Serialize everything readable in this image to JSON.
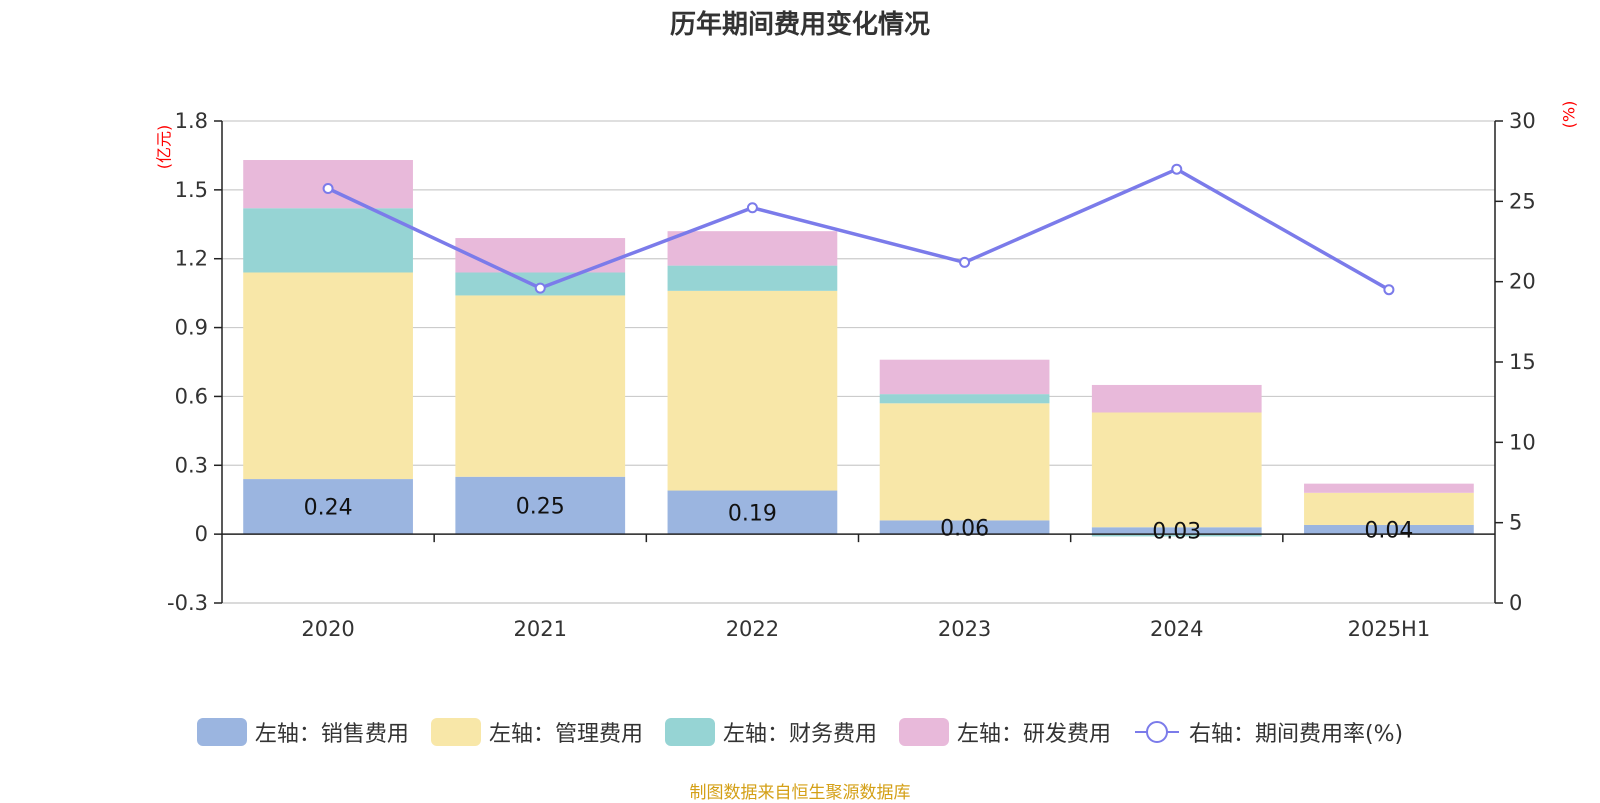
{
  "chart_data": {
    "type": "bar",
    "title": "历年期间费用变化情况",
    "left_unit": "(亿元)",
    "right_unit": "(%)",
    "categories": [
      "2020",
      "2021",
      "2022",
      "2023",
      "2024",
      "2025H1"
    ],
    "left_axis": {
      "ylim": [
        -0.3,
        1.8
      ],
      "ticks": [
        "1.8",
        "1.5",
        "1.2",
        "0.9",
        "0.6",
        "0.3",
        "0",
        "-0.3"
      ],
      "tick_values": [
        1.8,
        1.5,
        1.2,
        0.9,
        0.6,
        0.3,
        0,
        -0.3
      ]
    },
    "right_axis": {
      "ylim": [
        0,
        30
      ],
      "ticks": [
        "30",
        "25",
        "20",
        "15",
        "10",
        "5",
        "0"
      ],
      "tick_values": [
        30,
        25,
        20,
        15,
        10,
        5,
        0
      ]
    },
    "grid": true,
    "series": [
      {
        "name": "左轴：销售费用",
        "type": "bar",
        "stack": "left",
        "color": "#9bb5e0",
        "values": [
          0.24,
          0.25,
          0.19,
          0.06,
          0.03,
          0.04
        ],
        "labels": [
          "0.24",
          "0.25",
          "0.19",
          "0.06",
          "0.03",
          "0.04"
        ]
      },
      {
        "name": "左轴：管理费用",
        "type": "bar",
        "stack": "left",
        "color": "#f8e7a8",
        "values": [
          0.9,
          0.79,
          0.87,
          0.51,
          0.5,
          0.14
        ]
      },
      {
        "name": "左轴：财务费用",
        "type": "bar",
        "stack": "left",
        "color": "#96d4d4",
        "values": [
          0.28,
          0.1,
          0.11,
          0.04,
          -0.01,
          0.0
        ]
      },
      {
        "name": "左轴：研发费用",
        "type": "bar",
        "stack": "left",
        "color": "#e8b9da",
        "values": [
          0.21,
          0.15,
          0.15,
          0.15,
          0.12,
          0.04
        ]
      },
      {
        "name": "右轴：期间费用率(%)",
        "type": "line",
        "axis": "right",
        "color": "#7b7bea",
        "values": [
          25.8,
          19.6,
          24.6,
          21.2,
          27.0,
          19.5
        ]
      }
    ],
    "legend_position": "bottom"
  },
  "source_text": "制图数据来自恒生聚源数据库"
}
